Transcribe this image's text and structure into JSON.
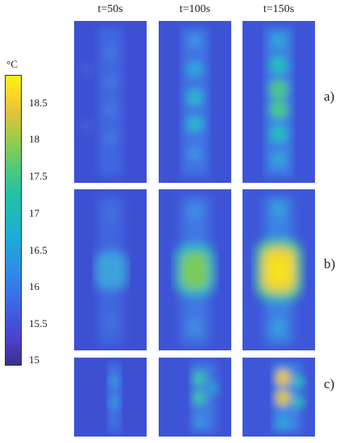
{
  "column_labels": [
    "t=50s",
    "t=100s",
    "t=150s"
  ],
  "row_labels": [
    "a)",
    "b)",
    "c)"
  ],
  "colorbar": {
    "unit": "°C",
    "ticks": [
      "18.5",
      "18",
      "17.5",
      "17",
      "16.5",
      "16",
      "15.5",
      "15"
    ],
    "min": 15,
    "max": 19
  },
  "colors": {
    "background_low": "#3d50d6",
    "background_mid": "#3d7ce6",
    "warm_teal": "#22b8c4",
    "warm_green": "#7acb5a",
    "hot_yellow": "#f5d52a"
  }
}
